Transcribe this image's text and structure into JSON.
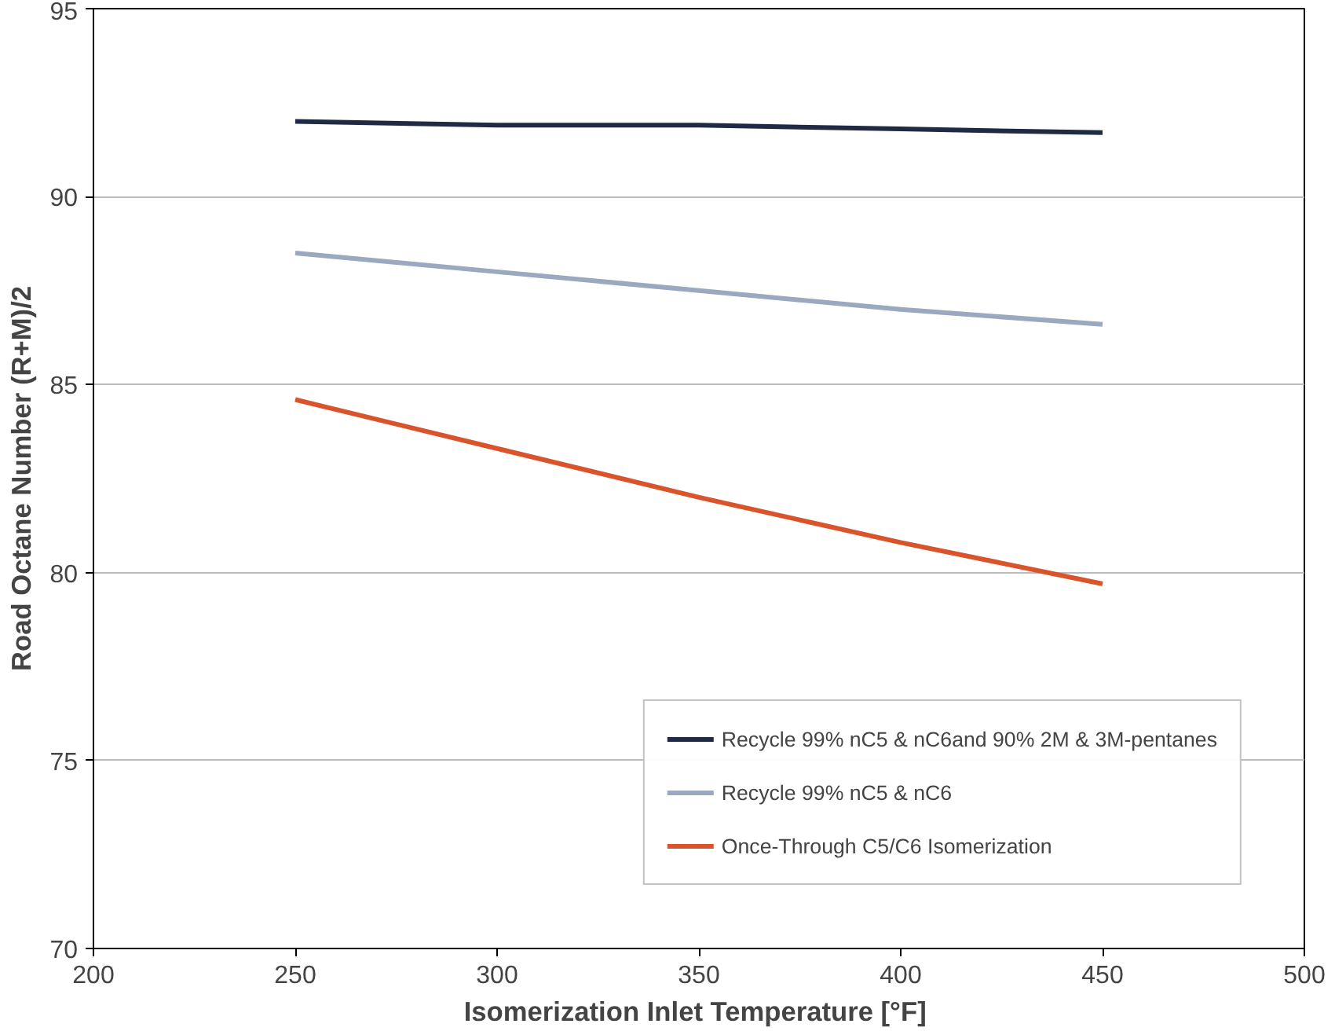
{
  "chart_data": {
    "type": "line",
    "xlabel": "Isomerization  Inlet Temperature [°F]",
    "ylabel": "Road Octane Number (R+M)/2",
    "x": [
      250,
      300,
      350,
      400,
      450
    ],
    "series": [
      {
        "name": "Recycle 99% nC5 & nC6and 90% 2M & 3M-pentanes",
        "color": "#1f2a44",
        "values": [
          92.0,
          91.9,
          91.9,
          91.8,
          91.7
        ]
      },
      {
        "name": "Recycle 99% nC5 & nC6",
        "color": "#9aa8c0",
        "values": [
          88.5,
          88.0,
          87.5,
          87.0,
          86.6
        ]
      },
      {
        "name": "Once-Through C5/C6 Isomerization",
        "color": "#d9532b",
        "values": [
          84.6,
          83.3,
          82.0,
          80.8,
          79.7
        ]
      }
    ],
    "xlim": [
      200,
      500
    ],
    "xticks": [
      200,
      250,
      300,
      350,
      400,
      450,
      500
    ],
    "ylim": [
      70,
      95
    ],
    "yticks": [
      70,
      75,
      80,
      85,
      90,
      95
    ],
    "grid": "y",
    "legend": "bottom right",
    "marker": "none",
    "line_style": "solid"
  }
}
